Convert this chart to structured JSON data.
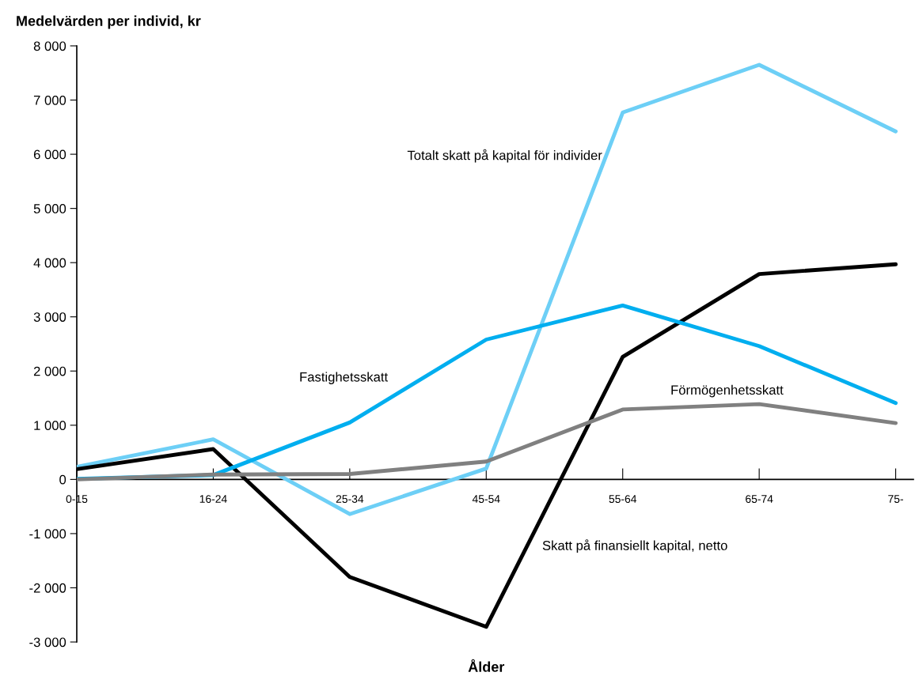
{
  "chart_data": {
    "type": "line",
    "ylabel": "Medelvärden per individ, kr",
    "xlabel": "Ålder",
    "categories": [
      "0-15",
      "16-24",
      "25-34",
      "45-54",
      "55-64",
      "65-74",
      "75-"
    ],
    "series": [
      {
        "name": "Totalt skatt på kapital för individer",
        "color": "#6dcff6",
        "values": [
          230,
          740,
          -640,
          200,
          6770,
          7650,
          6420
        ]
      },
      {
        "name": "Skatt på finansiellt kapital, netto",
        "color": "#000000",
        "values": [
          190,
          560,
          -1800,
          -2720,
          2260,
          3790,
          3970
        ]
      },
      {
        "name": "Fastighetsskatt",
        "color": "#00aeef",
        "values": [
          10,
          80,
          1050,
          2580,
          3210,
          2460,
          1410
        ]
      },
      {
        "name": "Förmögenhetsskatt",
        "color": "#808080",
        "values": [
          0,
          90,
          100,
          330,
          1290,
          1390,
          1040
        ]
      }
    ],
    "ylim": [
      -3000,
      8000
    ],
    "yticks": [
      {
        "value": -3000,
        "label": "-3 000"
      },
      {
        "value": -2000,
        "label": "-2 000"
      },
      {
        "value": -1000,
        "label": "-1 000"
      },
      0,
      {
        "value": 1000,
        "label": "1 000"
      },
      {
        "value": 2000,
        "label": "2 000"
      },
      {
        "value": 3000,
        "label": "3 000"
      },
      {
        "value": 4000,
        "label": "4 000"
      },
      {
        "value": 5000,
        "label": "5 000"
      },
      {
        "value": 6000,
        "label": "6 000"
      },
      {
        "value": 7000,
        "label": "7 000"
      },
      {
        "value": 8000,
        "label": "8 000"
      }
    ],
    "grid": false,
    "legend": false,
    "marker": "none",
    "line_style": "solid"
  }
}
